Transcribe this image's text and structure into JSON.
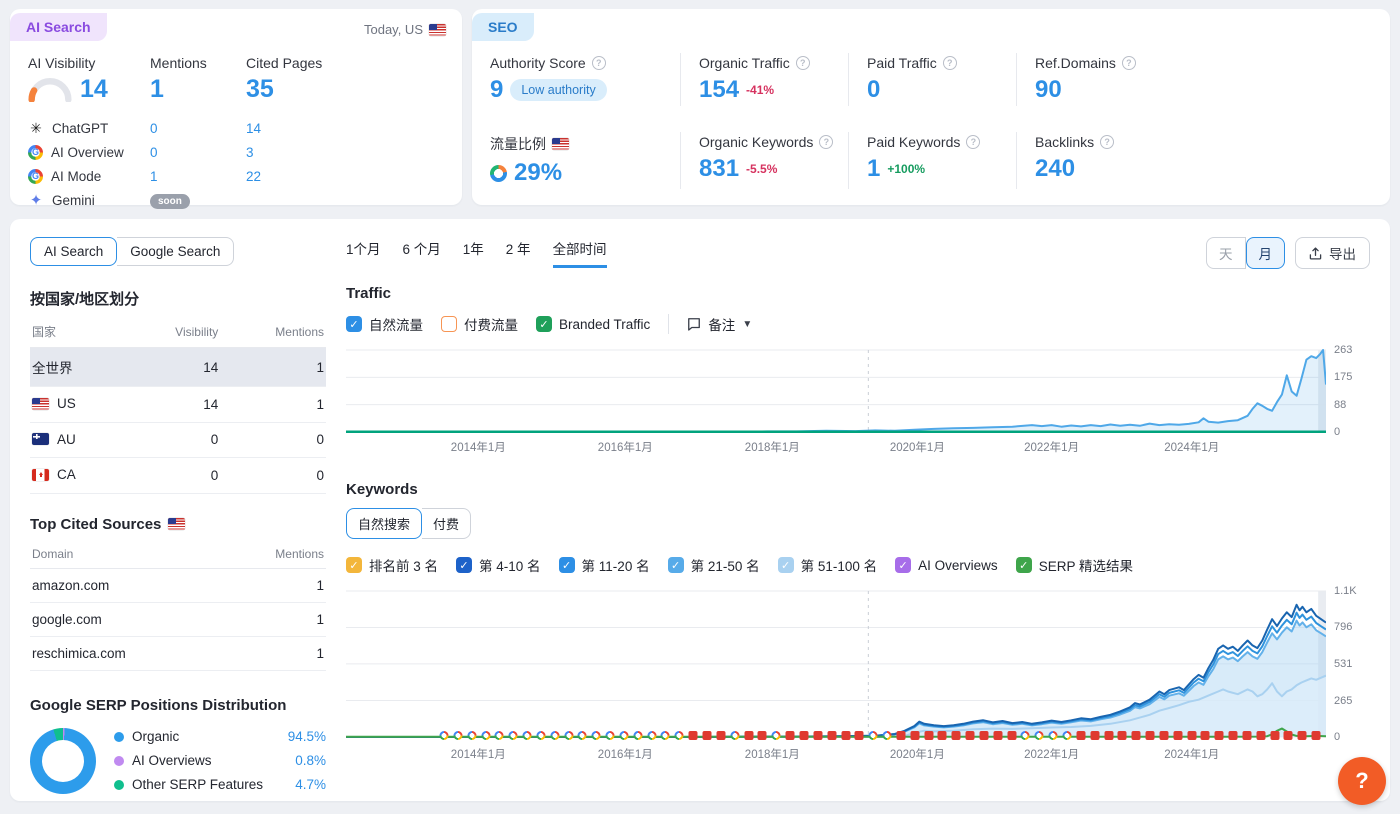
{
  "ai_card": {
    "badge": "AI Search",
    "date_label": "Today, US",
    "col_visibility": "AI Visibility",
    "col_mentions": "Mentions",
    "col_cited": "Cited Pages",
    "visibility_value": "14",
    "mentions_value": "1",
    "cited_value": "35",
    "rows": [
      {
        "name": "ChatGPT",
        "mentions": "0",
        "cited": "14"
      },
      {
        "name": "AI Overview",
        "mentions": "0",
        "cited": "3"
      },
      {
        "name": "AI Mode",
        "mentions": "1",
        "cited": "22"
      },
      {
        "name": "Gemini",
        "badge": "soon"
      }
    ]
  },
  "seo_card": {
    "badge": "SEO",
    "metrics": [
      {
        "label": "Authority Score",
        "value": "9",
        "tag": "Low authority"
      },
      {
        "label": "Organic Traffic",
        "value": "154",
        "change": "-41%"
      },
      {
        "label": "Paid Traffic",
        "value": "0"
      },
      {
        "label": "Ref.Domains",
        "value": "90"
      },
      {
        "label": "流量比例",
        "value": "29%"
      },
      {
        "label": "Organic Keywords",
        "value": "831",
        "change": "-5.5%"
      },
      {
        "label": "Paid Keywords",
        "value": "1",
        "change": "+100%"
      },
      {
        "label": "Backlinks",
        "value": "240"
      }
    ]
  },
  "main": {
    "search_tabs": {
      "ai": "AI Search",
      "google": "Google Search"
    },
    "time_tabs": [
      "1个月",
      "6 个月",
      "1年",
      "2 年",
      "全部时间"
    ],
    "granularity": {
      "day": "天",
      "month": "月"
    },
    "export_label": "导出",
    "notes_label": "备注",
    "left": {
      "country_heading": "按国家/地区划分",
      "country_cols": {
        "name": "国家",
        "visibility": "Visibility",
        "mentions": "Mentions"
      },
      "countries": [
        {
          "name": "全世界",
          "visibility": "14",
          "mentions": "1"
        },
        {
          "name": "US",
          "visibility": "14",
          "mentions": "1"
        },
        {
          "name": "AU",
          "visibility": "0",
          "mentions": "0"
        },
        {
          "name": "CA",
          "visibility": "0",
          "mentions": "0"
        }
      ],
      "sources_heading": "Top Cited Sources",
      "sources_cols": {
        "domain": "Domain",
        "mentions": "Mentions"
      },
      "sources": [
        {
          "domain": "amazon.com",
          "mentions": "1"
        },
        {
          "domain": "google.com",
          "mentions": "1"
        },
        {
          "domain": "reschimica.com",
          "mentions": "1"
        }
      ]
    },
    "traffic_heading": "Traffic",
    "keywords_heading": "Keywords",
    "keywords_tabs": {
      "organic": "自然搜索",
      "paid": "付费"
    }
  },
  "chart_data": [
    {
      "type": "area",
      "title": "Traffic",
      "legend": [
        {
          "label": "自然流量",
          "color": "#2d8fe5",
          "checked": true
        },
        {
          "label": "付费流量",
          "color": "#f79554",
          "checked": false
        },
        {
          "label": "Branded Traffic",
          "color": "#1fa05a",
          "checked": true
        }
      ],
      "layout": {
        "height": 92,
        "top": 6,
        "bottom": 4,
        "vline_pct": 53.3
      },
      "ylim": [
        0,
        263
      ],
      "y_ticks": [
        {
          "v": 263,
          "label": "263"
        },
        {
          "v": 175,
          "label": "175"
        },
        {
          "v": 88,
          "label": "88"
        },
        {
          "v": 0,
          "label": "0"
        }
      ],
      "x_ticks": [
        {
          "pos": 13.5,
          "label": "2014年1月"
        },
        {
          "pos": 28.5,
          "label": "2016年1月"
        },
        {
          "pos": 43.5,
          "label": "2018年1月"
        },
        {
          "pos": 58.3,
          "label": "2020年1月"
        },
        {
          "pos": 72,
          "label": "2022年1月"
        },
        {
          "pos": 86.3,
          "label": "2024年1月"
        }
      ],
      "series": [
        {
          "name": "organic-traffic",
          "color": "#4fa8e8",
          "fill": "rgba(79,168,232,0.16)",
          "points": [
            [
              0,
              0
            ],
            [
              36,
              0
            ],
            [
              40,
              1
            ],
            [
              43,
              2
            ],
            [
              46,
              2
            ],
            [
              49,
              4
            ],
            [
              52,
              3
            ],
            [
              54,
              5
            ],
            [
              56,
              4
            ],
            [
              58,
              7
            ],
            [
              60,
              10
            ],
            [
              62,
              12
            ],
            [
              64,
              13
            ],
            [
              66,
              15
            ],
            [
              68,
              17
            ],
            [
              70,
              22
            ],
            [
              71,
              19
            ],
            [
              72,
              22
            ],
            [
              73,
              17
            ],
            [
              74,
              21
            ],
            [
              75,
              18
            ],
            [
              76,
              22
            ],
            [
              77,
              19
            ],
            [
              78,
              24
            ],
            [
              79,
              20
            ],
            [
              80,
              23
            ],
            [
              81,
              20
            ],
            [
              82,
              27
            ],
            [
              83,
              22
            ],
            [
              84,
              25
            ],
            [
              85,
              23
            ],
            [
              86,
              26
            ],
            [
              87,
              31
            ],
            [
              87.5,
              44
            ],
            [
              88,
              33
            ],
            [
              89,
              30
            ],
            [
              90,
              35
            ],
            [
              91,
              38
            ],
            [
              92,
              52
            ],
            [
              92.5,
              74
            ],
            [
              93,
              92
            ],
            [
              93.5,
              84
            ],
            [
              94,
              74
            ],
            [
              94.5,
              68
            ],
            [
              95,
              96
            ],
            [
              95.5,
              120
            ],
            [
              96,
              182
            ],
            [
              96.5,
              130
            ],
            [
              97,
              116
            ],
            [
              97.5,
              172
            ],
            [
              98,
              232
            ],
            [
              98.5,
              243
            ],
            [
              99,
              237
            ],
            [
              99.4,
              250
            ],
            [
              99.7,
              263
            ],
            [
              100,
              152
            ]
          ]
        },
        {
          "name": "branded-traffic",
          "color": "#00a37d",
          "width": 2.5,
          "points": [
            [
              0,
              1
            ],
            [
              100,
              1
            ]
          ]
        }
      ]
    },
    {
      "type": "line",
      "title": "Keywords",
      "legend": [
        {
          "label": "排名前 3 名",
          "color": "#f3b63b",
          "checked": true
        },
        {
          "label": "第 4-10 名",
          "color": "#1d62c9",
          "checked": true
        },
        {
          "label": "第 11-20 名",
          "color": "#2d8fe5",
          "checked": true
        },
        {
          "label": "第 21-50 名",
          "color": "#57abe9",
          "checked": true
        },
        {
          "label": "第 51-100 名",
          "color": "#a9d1f0",
          "checked": true
        },
        {
          "label": "AI Overviews",
          "color": "#a76de9",
          "checked": true
        },
        {
          "label": "SERP 精选结果",
          "color": "#3fa54b",
          "checked": true
        }
      ],
      "layout": {
        "height": 158,
        "top": 6,
        "bottom": 6,
        "vline_pct": 53.3
      },
      "ylim": [
        0,
        1061
      ],
      "y_ticks": [
        {
          "v": 1061,
          "label": "1.1K"
        },
        {
          "v": 796,
          "label": "796"
        },
        {
          "v": 531,
          "label": "531"
        },
        {
          "v": 265,
          "label": "265"
        },
        {
          "v": 0,
          "label": "0"
        }
      ],
      "x_ticks": [
        {
          "pos": 13.5,
          "label": "2014年1月"
        },
        {
          "pos": 28.5,
          "label": "2016年1月"
        },
        {
          "pos": 43.5,
          "label": "2018年1月"
        },
        {
          "pos": 58.3,
          "label": "2020年1月"
        },
        {
          "pos": 72,
          "label": "2022年1月"
        },
        {
          "pos": 86.3,
          "label": "2024年1月"
        }
      ],
      "series": [
        {
          "name": "kw-light",
          "color": "#63b1ea",
          "scale": 0.88,
          "base": 3,
          "fill": "rgba(168,211,242,0.45)"
        },
        {
          "name": "kw-pale",
          "color": "#a9d1f0",
          "fill": "rgba(222,238,250,0.75)",
          "points": [
            [
              0,
              0
            ],
            [
              55,
              0
            ],
            [
              57,
              8
            ],
            [
              58,
              30
            ],
            [
              59,
              46
            ],
            [
              60,
              41
            ],
            [
              62,
              46
            ],
            [
              64,
              56
            ],
            [
              66,
              61
            ],
            [
              68,
              59
            ],
            [
              70,
              63
            ],
            [
              72,
              69
            ],
            [
              74,
              73
            ],
            [
              76,
              81
            ],
            [
              78,
              96
            ],
            [
              80,
              121
            ],
            [
              82,
              161
            ],
            [
              83,
              191
            ],
            [
              84,
              211
            ],
            [
              85,
              231
            ],
            [
              86,
              256
            ],
            [
              87,
              271
            ],
            [
              88,
              301
            ],
            [
              89,
              331
            ],
            [
              89.5,
              346
            ],
            [
              90,
              331
            ],
            [
              91,
              311
            ],
            [
              92,
              346
            ],
            [
              92.5,
              331
            ],
            [
              93,
              296
            ],
            [
              93.5,
              311
            ],
            [
              94,
              346
            ],
            [
              94.5,
              391
            ],
            [
              95,
              331
            ],
            [
              95.5,
              296
            ],
            [
              96,
              331
            ],
            [
              96.5,
              346
            ],
            [
              97,
              376
            ],
            [
              97.5,
              396
            ],
            [
              98,
              411
            ],
            [
              98.5,
              426
            ],
            [
              99,
              416
            ],
            [
              99.5,
              431
            ],
            [
              100,
              446
            ]
          ]
        },
        {
          "name": "kw-mid",
          "color": "#2f93dd",
          "scale": 0.94,
          "base": 3
        },
        {
          "name": "kw-dark",
          "color": "#1965b0",
          "points": [
            [
              0,
              0
            ],
            [
              36,
              0
            ],
            [
              40,
              2
            ],
            [
              45,
              3
            ],
            [
              50,
              5
            ],
            [
              54,
              9
            ],
            [
              56,
              22
            ],
            [
              57,
              45
            ],
            [
              58,
              80
            ],
            [
              58.5,
              112
            ],
            [
              59,
              96
            ],
            [
              60,
              86
            ],
            [
              61,
              79
            ],
            [
              62,
              86
            ],
            [
              63,
              96
            ],
            [
              64,
              112
            ],
            [
              65,
              122
            ],
            [
              66,
              106
            ],
            [
              67,
              116
            ],
            [
              68,
              101
            ],
            [
              69,
              109
            ],
            [
              70,
              96
            ],
            [
              71,
              106
            ],
            [
              72,
              119
            ],
            [
              73,
              109
            ],
            [
              74,
              121
            ],
            [
              75,
              136
            ],
            [
              76,
              129
            ],
            [
              77,
              146
            ],
            [
              78,
              161
            ],
            [
              79,
              186
            ],
            [
              80,
              216
            ],
            [
              80.5,
              246
            ],
            [
              81,
              236
            ],
            [
              82,
              271
            ],
            [
              82.5,
              301
            ],
            [
              83,
              331
            ],
            [
              83.5,
              311
            ],
            [
              84,
              341
            ],
            [
              85,
              361
            ],
            [
              85.5,
              341
            ],
            [
              86,
              381
            ],
            [
              86.5,
              421
            ],
            [
              87,
              451
            ],
            [
              87.5,
              431
            ],
            [
              88,
              501
            ],
            [
              88.5,
              561
            ],
            [
              89,
              641
            ],
            [
              89.5,
              666
            ],
            [
              90,
              641
            ],
            [
              90.5,
              656
            ],
            [
              91,
              626
            ],
            [
              91.5,
              666
            ],
            [
              92,
              701
            ],
            [
              92.5,
              666
            ],
            [
              93,
              646
            ],
            [
              93.5,
              701
            ],
            [
              94,
              781
            ],
            [
              94.5,
              856
            ],
            [
              95,
              806
            ],
            [
              95.5,
              861
            ],
            [
              96,
              906
            ],
            [
              96.5,
              871
            ],
            [
              97,
              961
            ],
            [
              97.3,
              921
            ],
            [
              97.6,
              946
            ],
            [
              98,
              906
            ],
            [
              98.5,
              931
            ],
            [
              99,
              881
            ],
            [
              99.5,
              856
            ],
            [
              100,
              831
            ]
          ]
        },
        {
          "name": "serp-features",
          "color": "#3fa54b",
          "width": 2,
          "points": [
            [
              0,
              2
            ],
            [
              90,
              2
            ],
            [
              93,
              3
            ],
            [
              94,
              6
            ],
            [
              94.5,
              20
            ],
            [
              95,
              45
            ],
            [
              95.5,
              62
            ],
            [
              96,
              40
            ],
            [
              96.5,
              18
            ],
            [
              97,
              8
            ],
            [
              98,
              5
            ],
            [
              99,
              8
            ],
            [
              100,
              6
            ]
          ]
        }
      ],
      "markers": "GGGGGGGGGGGGGGGGGGRRRGRRGRRRRRRGGRRRRRRRRRGGGGRRRRRRRRRRRRRRRRRR",
      "markers_start_pct": 10,
      "markers_end_pct": 99
    },
    {
      "type": "pie",
      "title": "Google SERP Positions Distribution",
      "labels": [
        "Organic",
        "AI Overviews",
        "Other SERP Features"
      ],
      "values": [
        94.5,
        0.8,
        4.7
      ],
      "display_values": [
        "94.5%",
        "0.8%",
        "4.7%"
      ],
      "colors": [
        "#2d9ceb",
        "#c08af0",
        "#10bf8e"
      ]
    }
  ],
  "help": {
    "label": "?"
  }
}
